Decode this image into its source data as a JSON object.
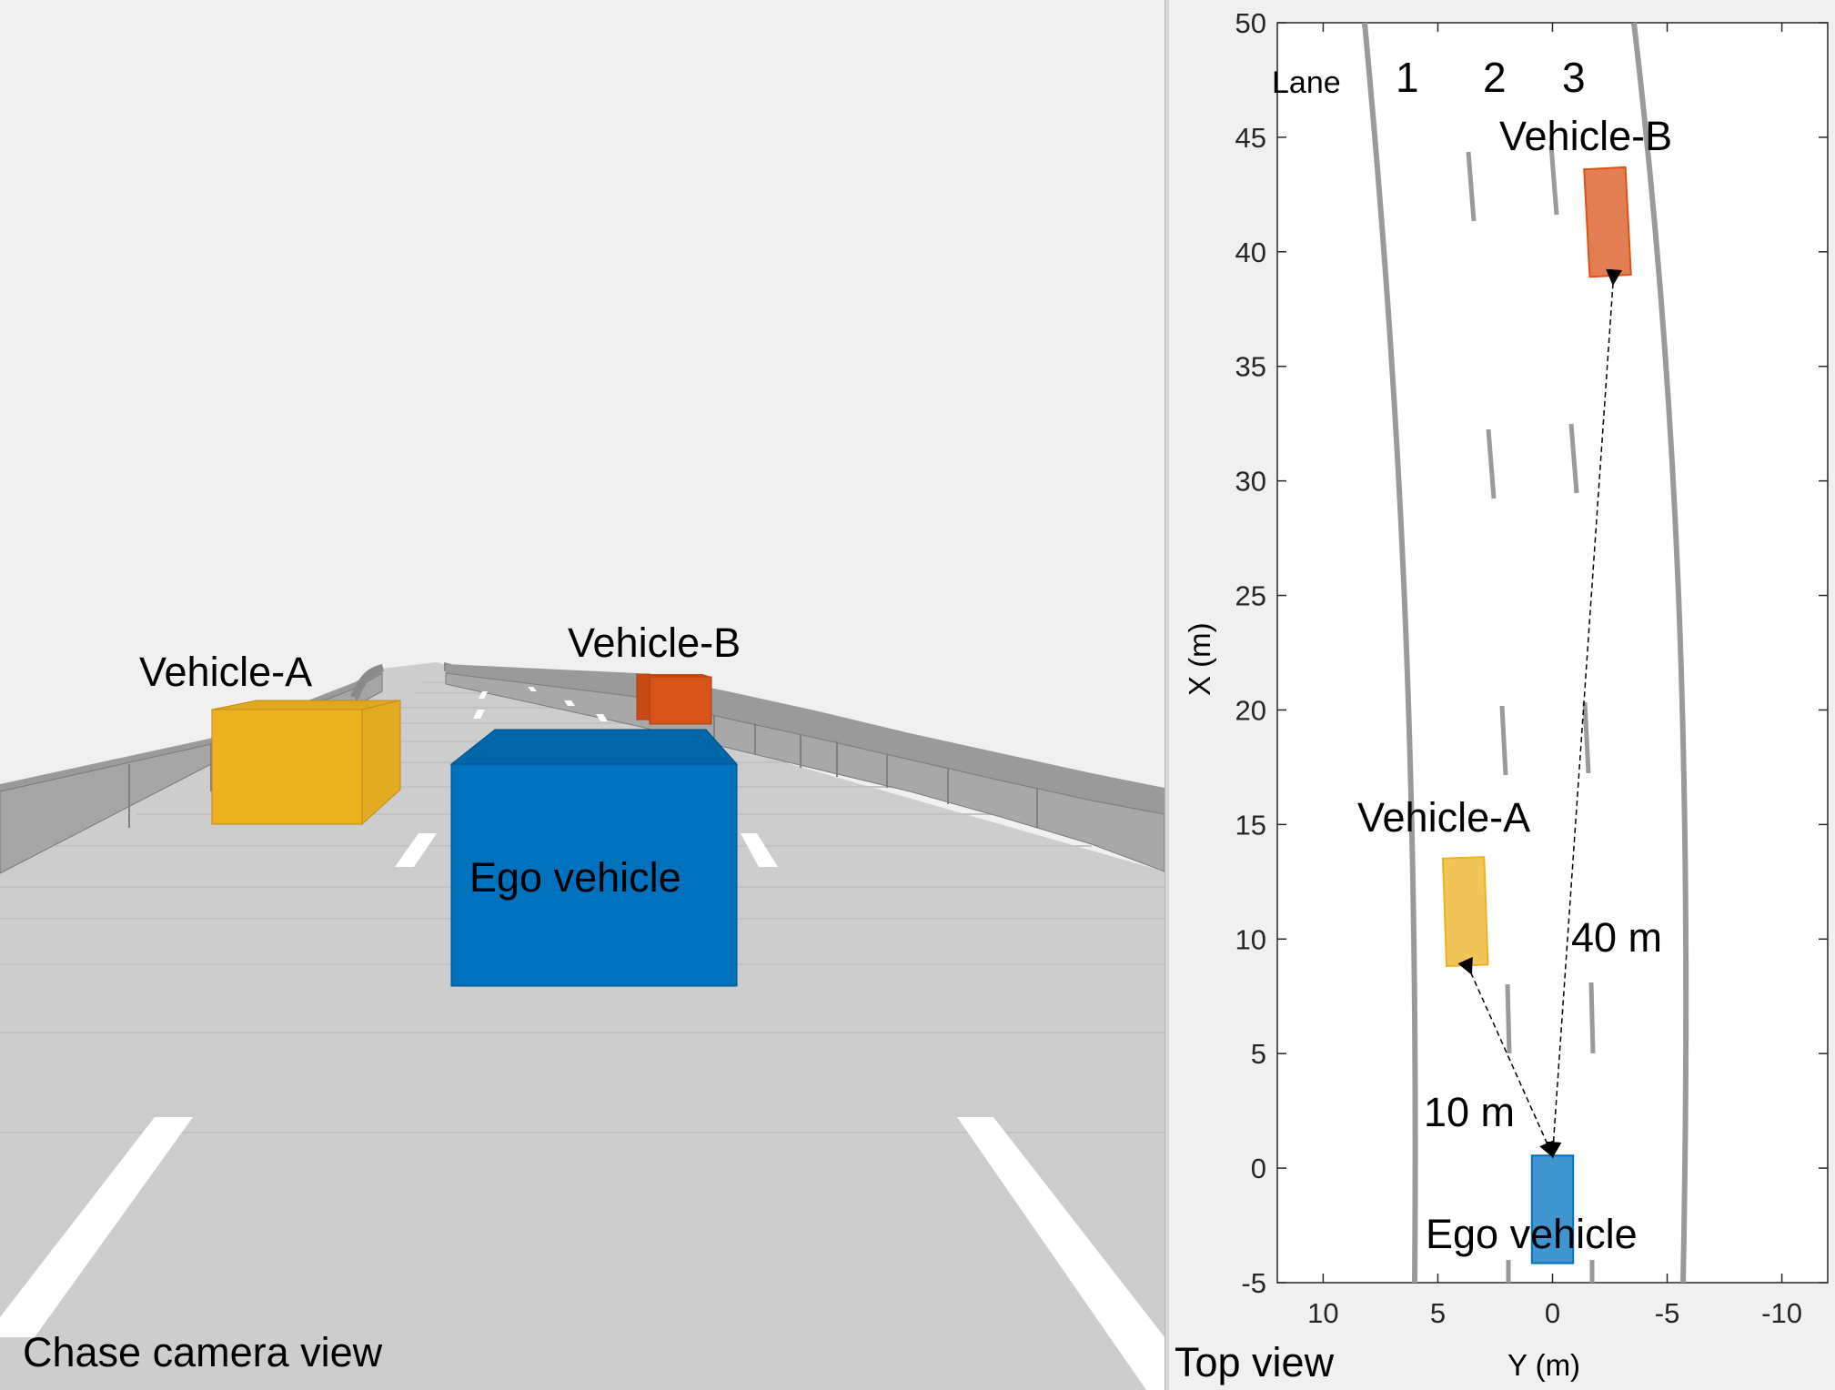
{
  "chase_view": {
    "caption": "Chase camera view",
    "labels": {
      "vehicle_a": "Vehicle-A",
      "vehicle_b": "Vehicle-B",
      "ego": "Ego vehicle"
    },
    "colors": {
      "ego": "#0072bd",
      "vehicle_a": "#edb120",
      "vehicle_b": "#d95319",
      "road": "#cfcfcf",
      "barrier": "#a8a8a8",
      "sky": "#f0f0f0"
    }
  },
  "top_view": {
    "caption": "Top view",
    "lane_header": "Lane",
    "lane_numbers": [
      "1",
      "2",
      "3"
    ],
    "annotations": {
      "vehicle_b": "Vehicle-B",
      "vehicle_a": "Vehicle-A",
      "ego": "Ego vehicle",
      "dist_a": "10 m",
      "dist_b": "40 m"
    },
    "colors": {
      "ego": "#0072bd",
      "vehicle_a": "#edb120",
      "vehicle_b": "#d95319",
      "lane_line": "#9a9a9a"
    }
  },
  "chart_data": {
    "type": "scatter",
    "xlabel": "Y (m)",
    "ylabel": "X (m)",
    "xlim": [
      12,
      -12
    ],
    "ylim": [
      -5,
      50
    ],
    "xticks": [
      10,
      5,
      0,
      -5,
      -10
    ],
    "yticks": [
      -5,
      0,
      5,
      10,
      15,
      20,
      25,
      30,
      35,
      40,
      45,
      50
    ],
    "series": [
      {
        "name": "Ego vehicle",
        "center_y": 0,
        "center_x": -1.8,
        "length": 4.7,
        "width": 1.8
      },
      {
        "name": "Vehicle-A",
        "center_y": 3.8,
        "center_x": 11.2,
        "length": 4.7,
        "width": 1.8
      },
      {
        "name": "Vehicle-B",
        "center_y": -2.4,
        "center_x": 41.3,
        "length": 4.7,
        "width": 1.8
      }
    ],
    "distances": [
      {
        "label": "10 m",
        "to": "Vehicle-A",
        "value": 10
      },
      {
        "label": "40 m",
        "to": "Vehicle-B",
        "value": 40
      }
    ]
  }
}
